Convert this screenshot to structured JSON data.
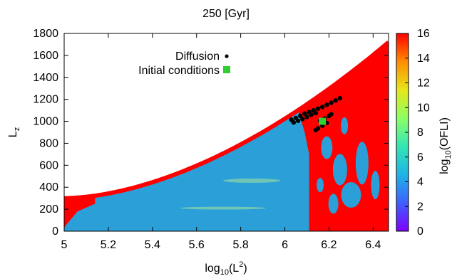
{
  "chart_data": {
    "type": "heatmap",
    "title": "250 [Gyr]",
    "xlabel": {
      "base": "log",
      "sub": "10",
      "open": "(L",
      "sup": "2",
      "close": ")"
    },
    "ylabel": {
      "base": "L",
      "sub": "z"
    },
    "xlim": [
      5,
      6.47
    ],
    "ylim": [
      0,
      1800
    ],
    "xticks": [
      "5",
      "5.2",
      "5.4",
      "5.6",
      "5.8",
      "6",
      "6.2",
      "6.4"
    ],
    "yticks": [
      "0",
      "200",
      "400",
      "600",
      "800",
      "1000",
      "1200",
      "1400",
      "1600",
      "1800"
    ],
    "colorbar": {
      "label": {
        "base": "log",
        "sub": "10",
        "rest": "(OFLI)"
      },
      "range": [
        0,
        16
      ],
      "ticks": [
        "0",
        "2",
        "4",
        "6",
        "8",
        "10",
        "12",
        "14",
        "16"
      ],
      "colors": [
        "#7f00ff",
        "#3f5fff",
        "#1eb4e6",
        "#33e6b3",
        "#8cff66",
        "#e6e61a",
        "#ff8c00",
        "#ff0000"
      ]
    },
    "region_colors": {
      "regular": "#2a9fd8",
      "chaotic": "#ff0000",
      "transition": "#8fd7a6"
    },
    "legend": {
      "position": "top-center",
      "entries": [
        {
          "label": "Diffusion",
          "marker": "dot",
          "color": "#000000"
        },
        {
          "label": "Initial conditions",
          "marker": "square",
          "color": "#32cd32"
        }
      ]
    },
    "diffusion_points": [
      [
        6.03,
        1015
      ],
      [
        6.05,
        1030
      ],
      [
        6.07,
        1050
      ],
      [
        6.09,
        1070
      ],
      [
        6.11,
        1085
      ],
      [
        6.13,
        1100
      ],
      [
        6.15,
        1115
      ],
      [
        6.17,
        1130
      ],
      [
        6.19,
        1150
      ],
      [
        6.21,
        1170
      ],
      [
        6.23,
        1190
      ],
      [
        6.25,
        1210
      ],
      [
        6.16,
        1005
      ],
      [
        6.18,
        1025
      ],
      [
        6.2,
        1050
      ],
      [
        6.21,
        1065
      ],
      [
        6.17,
        960
      ],
      [
        6.15,
        935
      ],
      [
        6.14,
        920
      ],
      [
        6.19,
        985
      ],
      [
        6.04,
        990
      ],
      [
        6.06,
        1005
      ],
      [
        6.08,
        1020
      ],
      [
        6.1,
        1040
      ],
      [
        6.12,
        1060
      ],
      [
        6.14,
        1075
      ]
    ],
    "initial_condition": [
      6.17,
      1000
    ]
  }
}
